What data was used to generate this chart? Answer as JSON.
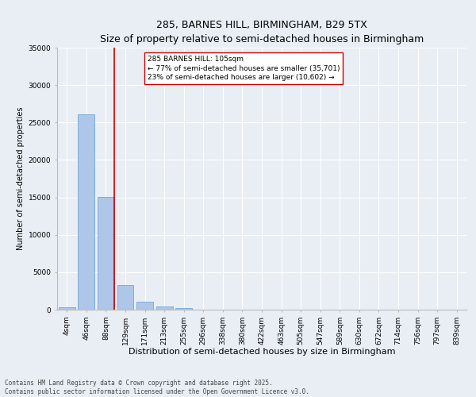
{
  "title": "285, BARNES HILL, BIRMINGHAM, B29 5TX",
  "subtitle": "Size of property relative to semi-detached houses in Birmingham",
  "xlabel": "Distribution of semi-detached houses by size in Birmingham",
  "ylabel": "Number of semi-detached properties",
  "categories": [
    "4sqm",
    "46sqm",
    "88sqm",
    "129sqm",
    "171sqm",
    "213sqm",
    "255sqm",
    "296sqm",
    "338sqm",
    "380sqm",
    "422sqm",
    "463sqm",
    "505sqm",
    "547sqm",
    "589sqm",
    "630sqm",
    "672sqm",
    "714sqm",
    "756sqm",
    "797sqm",
    "839sqm"
  ],
  "values": [
    350,
    26100,
    15100,
    3300,
    1050,
    450,
    200,
    50,
    10,
    5,
    2,
    1,
    0,
    0,
    0,
    0,
    0,
    0,
    0,
    0,
    0
  ],
  "bar_color": "#aec6e8",
  "bar_edge_color": "#5a9fd4",
  "vline_x_index": 2,
  "vline_color": "#cc0000",
  "annotation_text": "285 BARNES HILL: 105sqm\n← 77% of semi-detached houses are smaller (35,701)\n23% of semi-detached houses are larger (10,602) →",
  "annotation_box_color": "#ffffff",
  "annotation_box_edge": "#cc0000",
  "ylim": [
    0,
    35000
  ],
  "yticks": [
    0,
    5000,
    10000,
    15000,
    20000,
    25000,
    30000,
    35000
  ],
  "background_color": "#e8eef4",
  "plot_bg_color": "#e8eef4",
  "grid_color": "#ffffff",
  "footnote": "Contains HM Land Registry data © Crown copyright and database right 2025.\nContains public sector information licensed under the Open Government Licence v3.0.",
  "title_fontsize": 9,
  "xlabel_fontsize": 8,
  "ylabel_fontsize": 7,
  "tick_fontsize": 6.5,
  "annotation_fontsize": 6.5,
  "footnote_fontsize": 5.5
}
